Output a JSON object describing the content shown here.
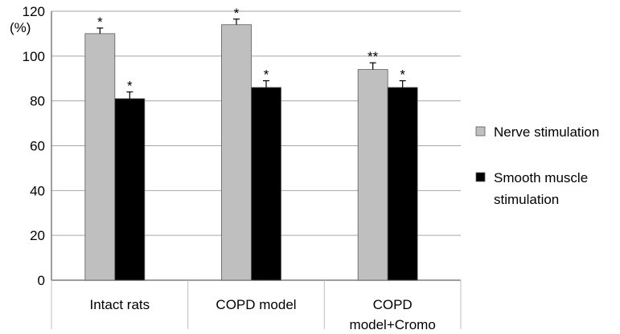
{
  "chart_data": {
    "type": "bar",
    "ylabel": "(%)",
    "ylim": [
      0,
      120
    ],
    "yticks": [
      0,
      20,
      40,
      60,
      80,
      100,
      120
    ],
    "grid": "horizontal",
    "legend_position": "right",
    "categories": [
      [
        "Intact rats"
      ],
      [
        "COPD model"
      ],
      [
        "COPD",
        "model+Cromo"
      ]
    ],
    "series": [
      {
        "name": "Nerve stimulation",
        "color": "#bfbfbf",
        "values": [
          110,
          114,
          94
        ],
        "errors": [
          2.5,
          2.5,
          3
        ],
        "annotations": [
          "*",
          "*",
          "**"
        ]
      },
      {
        "name_lines": [
          "Smooth muscle",
          "stimulation"
        ],
        "color": "#000000",
        "values": [
          81,
          86,
          86
        ],
        "errors": [
          3,
          3,
          3
        ],
        "annotations": [
          "*",
          "*",
          "*"
        ]
      }
    ]
  }
}
